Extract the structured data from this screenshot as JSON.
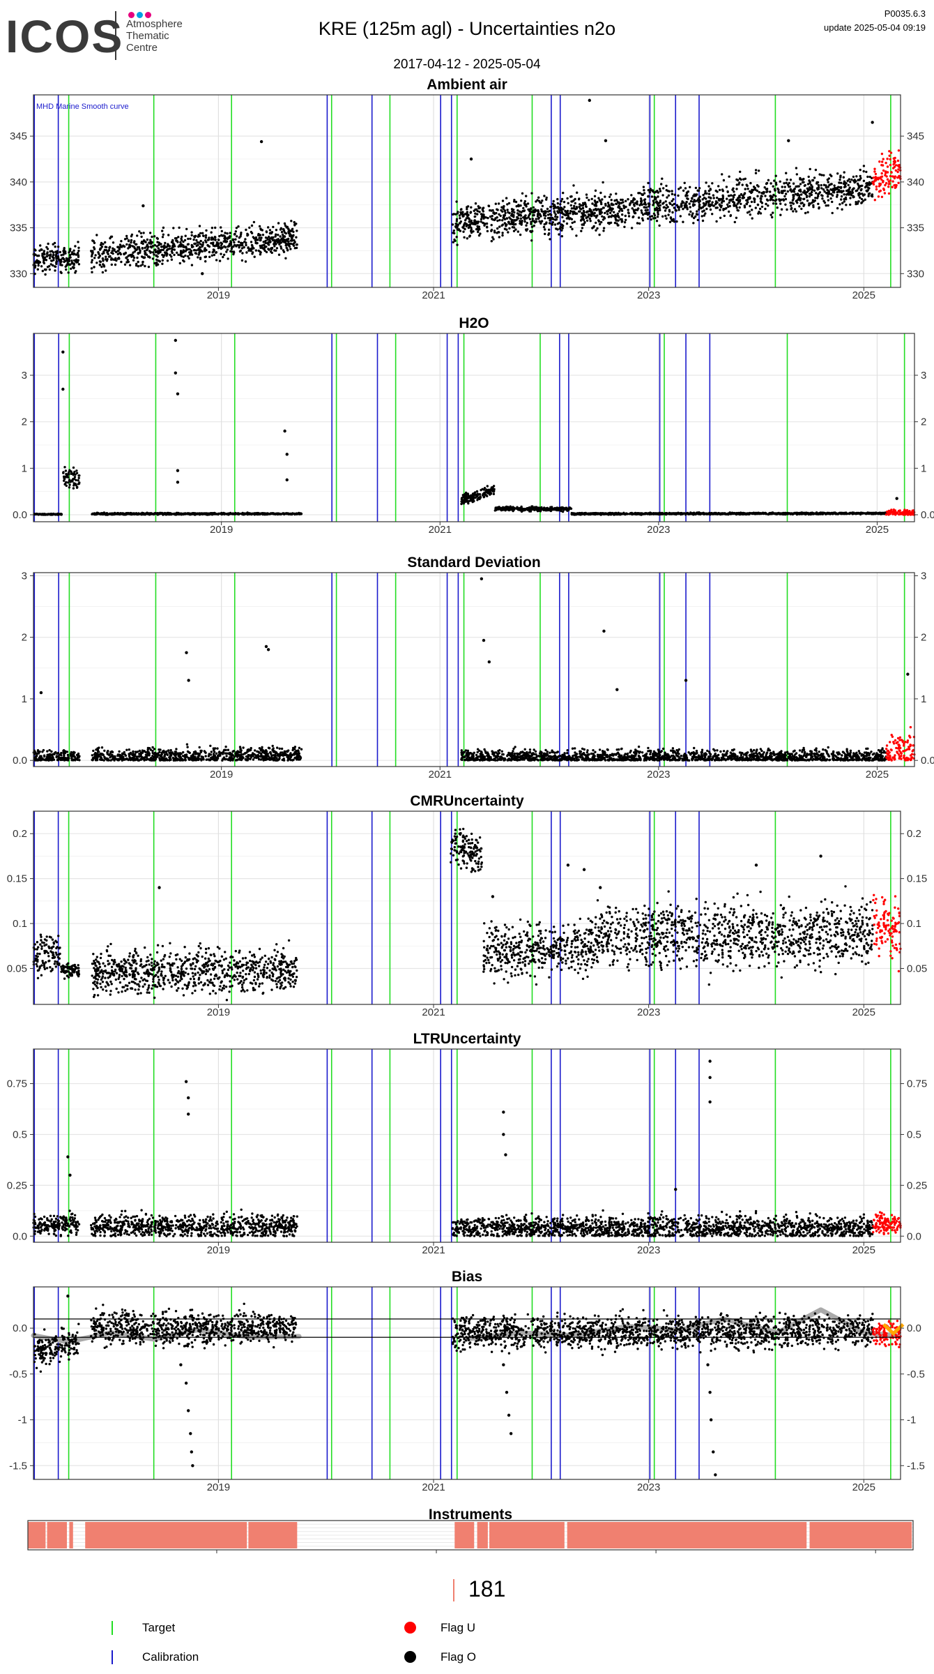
{
  "header": {
    "logo_text": "ICOS",
    "logo_sub": [
      "Atmosphere",
      "Thematic",
      "Centre"
    ],
    "title": "KRE  (125m agl) - Uncertainties n2o",
    "date_range": "2017-04-12 - 2025-05-04",
    "version": "P0035.6.3",
    "update": "update  2025-05-04 09:19"
  },
  "colors": {
    "target": "#22dd22",
    "calibration": "#1a1acc",
    "flag_u": "#ff0000",
    "flag_o": "#000000",
    "smooth": "#aaaaaa",
    "instrument": "#f08070",
    "orange": "#ffa500",
    "logo_dots": [
      "#e6007e",
      "#00a0e3",
      "#e6007e"
    ]
  },
  "timeline": {
    "start": "2017-04-12",
    "end": "2025-05-04",
    "year_ticks": [
      "2019",
      "2021",
      "2023",
      "2025"
    ],
    "target_lines": [
      "2017-08-10",
      "2018-05-25",
      "2019-02-15",
      "2020-01-20",
      "2020-08-05",
      "2021-03-20",
      "2021-12-01",
      "2023-01-20",
      "2024-03-05",
      "2025-04-01"
    ],
    "calibration_lines": [
      "2017-04-15",
      "2017-07-05",
      "2020-01-05",
      "2020-06-05",
      "2021-01-25",
      "2021-03-01",
      "2022-02-05",
      "2022-03-05",
      "2023-01-05",
      "2023-04-01",
      "2023-06-20"
    ]
  },
  "chart_data": [
    {
      "type": "scatter",
      "title": "Ambient air",
      "annotation": "MHD Marine Smooth curve",
      "ylim": [
        328.5,
        349.5
      ],
      "yticks": [
        330,
        335,
        340,
        345
      ],
      "right_axis": true,
      "segments": [
        {
          "start": "2017-04-12",
          "end": "2017-09-15",
          "base_start": 331.5,
          "base_end": 331.8,
          "spread": 2.5,
          "flag": "O"
        },
        {
          "start": "2017-10-25",
          "end": "2019-09-25",
          "base_start": 332.0,
          "base_end": 334.0,
          "spread": 3.0,
          "flag": "O"
        },
        {
          "start": "2021-03-05",
          "end": "2025-02-01",
          "base_start": 335.5,
          "base_end": 339.5,
          "spread": 3.5,
          "flag": "O"
        },
        {
          "start": "2025-02-01",
          "end": "2025-05-04",
          "base_start": 340.0,
          "base_end": 341.5,
          "spread": 4.0,
          "flag": "U"
        }
      ],
      "outliers": [
        [
          2018.3,
          337.4
        ],
        [
          2018.85,
          330.0
        ],
        [
          2019.4,
          344.4
        ],
        [
          2021.35,
          342.5
        ],
        [
          2022.45,
          348.9
        ],
        [
          2022.6,
          344.5
        ],
        [
          2024.3,
          344.5
        ],
        [
          2025.08,
          346.5
        ]
      ]
    },
    {
      "type": "scatter",
      "title": "H2O",
      "ylim": [
        -0.15,
        3.9
      ],
      "yticks": [
        0,
        1,
        2,
        3
      ],
      "right_axis": true,
      "segments": [
        {
          "start": "2017-04-12",
          "end": "2017-07-15",
          "base_start": 0.01,
          "base_end": 0.01,
          "spread": 0.02,
          "flag": "O"
        },
        {
          "start": "2017-07-15",
          "end": "2017-09-15",
          "base_start": 0.85,
          "base_end": 0.75,
          "spread": 0.35,
          "flag": "O"
        },
        {
          "start": "2017-10-25",
          "end": "2019-09-25",
          "base_start": 0.02,
          "base_end": 0.02,
          "spread": 0.03,
          "flag": "O"
        },
        {
          "start": "2021-03-10",
          "end": "2021-07-01",
          "base_start": 0.3,
          "base_end": 0.55,
          "spread": 0.2,
          "flag": "O"
        },
        {
          "start": "2021-07-01",
          "end": "2022-03-15",
          "base_start": 0.13,
          "base_end": 0.12,
          "spread": 0.08,
          "flag": "O"
        },
        {
          "start": "2022-03-15",
          "end": "2025-02-01",
          "base_start": 0.02,
          "base_end": 0.03,
          "spread": 0.03,
          "flag": "O"
        },
        {
          "start": "2025-02-01",
          "end": "2025-05-04",
          "base_start": 0.04,
          "base_end": 0.05,
          "spread": 0.1,
          "flag": "U"
        }
      ],
      "outliers": [
        [
          2017.55,
          3.5
        ],
        [
          2017.55,
          2.7
        ],
        [
          2018.58,
          3.75
        ],
        [
          2018.58,
          3.05
        ],
        [
          2018.6,
          2.6
        ],
        [
          2018.6,
          0.95
        ],
        [
          2018.6,
          0.7
        ],
        [
          2019.58,
          1.8
        ],
        [
          2019.6,
          1.3
        ],
        [
          2019.6,
          0.75
        ],
        [
          2025.18,
          0.35
        ]
      ]
    },
    {
      "type": "scatter",
      "title": "Standard Deviation",
      "ylim": [
        -0.1,
        3.05
      ],
      "yticks": [
        0,
        1,
        2,
        3
      ],
      "right_axis": true,
      "segments": [
        {
          "start": "2017-04-12",
          "end": "2017-09-15",
          "base_start": 0.05,
          "base_end": 0.05,
          "spread": 0.2,
          "flag": "O"
        },
        {
          "start": "2017-10-25",
          "end": "2019-09-25",
          "base_start": 0.05,
          "base_end": 0.08,
          "spread": 0.25,
          "flag": "O"
        },
        {
          "start": "2021-03-10",
          "end": "2025-02-01",
          "base_start": 0.05,
          "base_end": 0.05,
          "spread": 0.22,
          "flag": "O"
        },
        {
          "start": "2025-02-01",
          "end": "2025-05-04",
          "base_start": 0.1,
          "base_end": 0.15,
          "spread": 0.5,
          "flag": "U"
        }
      ],
      "outliers": [
        [
          2017.35,
          1.1
        ],
        [
          2018.68,
          1.75
        ],
        [
          2018.7,
          1.3
        ],
        [
          2019.41,
          1.85
        ],
        [
          2019.43,
          1.8
        ],
        [
          2021.38,
          2.95
        ],
        [
          2021.4,
          1.95
        ],
        [
          2021.45,
          1.6
        ],
        [
          2022.5,
          2.1
        ],
        [
          2022.62,
          1.15
        ],
        [
          2023.25,
          1.3
        ],
        [
          2025.28,
          1.4
        ]
      ]
    },
    {
      "type": "scatter",
      "title": "CMRUncertainty",
      "ylim": [
        0.01,
        0.225
      ],
      "yticks": [
        0.05,
        0.1,
        0.15,
        0.2
      ],
      "right_axis": true,
      "segments": [
        {
          "start": "2017-04-12",
          "end": "2017-07-15",
          "base_start": 0.065,
          "base_end": 0.068,
          "spread": 0.04,
          "flag": "O"
        },
        {
          "start": "2017-07-15",
          "end": "2017-09-15",
          "base_start": 0.048,
          "base_end": 0.048,
          "spread": 0.012,
          "flag": "O"
        },
        {
          "start": "2017-10-25",
          "end": "2019-09-25",
          "base_start": 0.045,
          "base_end": 0.048,
          "spread": 0.04,
          "flag": "O"
        },
        {
          "start": "2021-02-25",
          "end": "2021-06-15",
          "base_start": 0.19,
          "base_end": 0.175,
          "spread": 0.04,
          "flag": "O"
        },
        {
          "start": "2021-06-15",
          "end": "2022-07-01",
          "base_start": 0.07,
          "base_end": 0.075,
          "spread": 0.05,
          "flag": "O"
        },
        {
          "start": "2022-07-01",
          "end": "2025-02-01",
          "base_start": 0.085,
          "base_end": 0.09,
          "spread": 0.06,
          "flag": "O"
        },
        {
          "start": "2025-02-01",
          "end": "2025-05-04",
          "base_start": 0.1,
          "base_end": 0.09,
          "spread": 0.05,
          "flag": "U"
        }
      ],
      "outliers": [
        [
          2018.45,
          0.14
        ],
        [
          2021.55,
          0.13
        ],
        [
          2022.25,
          0.165
        ],
        [
          2022.4,
          0.16
        ],
        [
          2022.55,
          0.14
        ],
        [
          2024.0,
          0.165
        ],
        [
          2024.6,
          0.175
        ]
      ]
    },
    {
      "type": "scatter",
      "title": "LTRUncertainty",
      "ylim": [
        -0.03,
        0.92
      ],
      "yticks": [
        0,
        0.25,
        0.5,
        0.75
      ],
      "right_axis": true,
      "segments": [
        {
          "start": "2017-04-12",
          "end": "2017-09-15",
          "base_start": 0.05,
          "base_end": 0.06,
          "spread": 0.08,
          "flag": "O"
        },
        {
          "start": "2017-10-25",
          "end": "2019-09-25",
          "base_start": 0.05,
          "base_end": 0.05,
          "spread": 0.1,
          "flag": "O"
        },
        {
          "start": "2021-03-05",
          "end": "2025-02-01",
          "base_start": 0.04,
          "base_end": 0.04,
          "spread": 0.1,
          "flag": "O"
        },
        {
          "start": "2025-02-01",
          "end": "2025-05-04",
          "base_start": 0.06,
          "base_end": 0.06,
          "spread": 0.08,
          "flag": "U"
        }
      ],
      "outliers": [
        [
          2017.6,
          0.39
        ],
        [
          2017.62,
          0.3
        ],
        [
          2018.7,
          0.76
        ],
        [
          2018.72,
          0.68
        ],
        [
          2018.72,
          0.6
        ],
        [
          2021.65,
          0.61
        ],
        [
          2021.65,
          0.5
        ],
        [
          2021.67,
          0.4
        ],
        [
          2023.25,
          0.23
        ],
        [
          2023.57,
          0.86
        ],
        [
          2023.57,
          0.78
        ],
        [
          2023.57,
          0.66
        ]
      ]
    },
    {
      "type": "scatter",
      "title": "Bias",
      "ylim": [
        -1.65,
        0.45
      ],
      "yticks": [
        -1.5,
        -1.0,
        -0.5,
        0.0
      ],
      "hlines": [
        0.1,
        -0.1
      ],
      "right_axis": true,
      "smooth": [
        [
          2017.28,
          -0.08
        ],
        [
          2017.6,
          -0.15
        ],
        [
          2018.0,
          -0.05
        ],
        [
          2018.4,
          -0.12
        ],
        [
          2018.8,
          -0.02
        ],
        [
          2019.3,
          -0.1
        ],
        [
          2019.75,
          -0.09
        ],
        [
          2021.3,
          -0.12
        ],
        [
          2021.8,
          -0.05
        ],
        [
          2022.3,
          -0.08
        ],
        [
          2022.8,
          0.02
        ],
        [
          2023.3,
          -0.02
        ],
        [
          2023.7,
          0.1
        ],
        [
          2024.2,
          -0.05
        ],
        [
          2024.6,
          0.2
        ],
        [
          2025.0,
          -0.05
        ],
        [
          2025.3,
          -0.08
        ]
      ],
      "segments": [
        {
          "start": "2017-04-12",
          "end": "2017-09-15",
          "base_start": -0.25,
          "base_end": -0.15,
          "spread": 0.3,
          "flag": "O"
        },
        {
          "start": "2017-10-25",
          "end": "2019-09-25",
          "base_start": 0.0,
          "base_end": 0.0,
          "spread": 0.3,
          "flag": "O"
        },
        {
          "start": "2021-03-05",
          "end": "2025-02-01",
          "base_start": -0.05,
          "base_end": -0.03,
          "spread": 0.3,
          "flag": "O"
        },
        {
          "start": "2025-02-01",
          "end": "2025-05-04",
          "base_start": -0.05,
          "base_end": -0.05,
          "spread": 0.25,
          "flag": "U"
        }
      ],
      "outliers": [
        [
          2017.6,
          0.35
        ],
        [
          2018.65,
          -0.4
        ],
        [
          2018.7,
          -0.6
        ],
        [
          2018.72,
          -0.9
        ],
        [
          2018.74,
          -1.15
        ],
        [
          2018.75,
          -1.35
        ],
        [
          2018.76,
          -1.5
        ],
        [
          2021.65,
          -0.4
        ],
        [
          2021.68,
          -0.7
        ],
        [
          2021.7,
          -0.95
        ],
        [
          2021.72,
          -1.15
        ],
        [
          2023.55,
          -0.4
        ],
        [
          2023.57,
          -0.7
        ],
        [
          2023.58,
          -1.0
        ],
        [
          2023.6,
          -1.35
        ],
        [
          2023.62,
          -1.6
        ]
      ]
    },
    {
      "type": "table",
      "title": "Instruments",
      "blocks": [
        [
          "2017-04-12",
          "2017-06-10"
        ],
        [
          "2017-06-15",
          "2017-08-20"
        ],
        [
          "2017-08-28",
          "2017-09-10"
        ],
        [
          "2017-10-20",
          "2019-04-10"
        ],
        [
          "2019-04-15",
          "2019-09-25"
        ],
        [
          "2021-03-01",
          "2021-05-05"
        ],
        [
          "2021-05-15",
          "2021-06-20"
        ],
        [
          "2021-06-25",
          "2022-03-01"
        ],
        [
          "2022-03-10",
          "2024-05-15"
        ],
        [
          "2024-05-25",
          "2025-04-30"
        ]
      ]
    }
  ],
  "footer": {
    "count": "181",
    "legend": [
      {
        "label": "Target",
        "kind": "tick",
        "color_key": "target"
      },
      {
        "label": "Calibration",
        "kind": "tick",
        "color_key": "calibration"
      },
      {
        "label": "Flag U",
        "kind": "dot",
        "color_key": "flag_u"
      },
      {
        "label": "Flag O",
        "kind": "dot",
        "color_key": "flag_o"
      }
    ]
  }
}
